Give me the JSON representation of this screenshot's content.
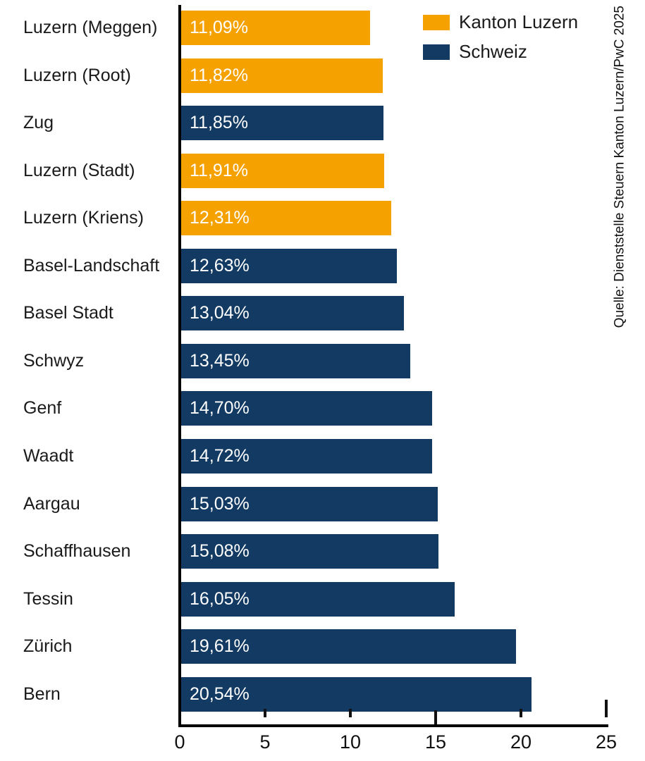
{
  "chart_data": {
    "type": "bar",
    "orientation": "horizontal",
    "title": "",
    "categories": [
      "Luzern (Meggen)",
      "Luzern (Root)",
      "Zug",
      "Luzern (Stadt)",
      "Luzern (Kriens)",
      "Basel-Landschaft",
      "Basel Stadt",
      "Schwyz",
      "Genf",
      "Waadt",
      "Aargau",
      "Schaffhausen",
      "Tessin",
      "Zürich",
      "Bern"
    ],
    "values": [
      11.09,
      11.82,
      11.85,
      11.91,
      12.31,
      12.63,
      13.04,
      13.45,
      14.7,
      14.72,
      15.03,
      15.08,
      16.05,
      19.61,
      20.54
    ],
    "value_labels": [
      "11,09%",
      "11,82%",
      "11,85%",
      "11,91%",
      "12,31%",
      "12,63%",
      "13,04%",
      "13,45%",
      "14,70%",
      "14,72%",
      "15,03%",
      "15,08%",
      "16,05%",
      "19,61%",
      "20,54%"
    ],
    "groups": [
      "Kanton Luzern",
      "Kanton Luzern",
      "Schweiz",
      "Kanton Luzern",
      "Kanton Luzern",
      "Schweiz",
      "Schweiz",
      "Schweiz",
      "Schweiz",
      "Schweiz",
      "Schweiz",
      "Schweiz",
      "Schweiz",
      "Schweiz",
      "Schweiz"
    ],
    "series": [
      {
        "name": "Kanton Luzern",
        "color": "#F5A100"
      },
      {
        "name": "Schweiz",
        "color": "#123A63"
      }
    ],
    "x_ticks": [
      0,
      5,
      10,
      15,
      20,
      25
    ],
    "x_tick_labels": [
      "0",
      "5",
      "10",
      "15",
      "20",
      "25"
    ],
    "xlim": [
      0,
      25
    ],
    "xlabel": "",
    "ylabel": "",
    "grid": false,
    "legend_position": "top-right"
  },
  "source": {
    "text": "Quelle: Dienststelle Steuern Kanton Luzern/PwC 2025"
  },
  "colors": {
    "axis": "#000000",
    "category_text": "#1a1a1a",
    "value_text": "#ffffff",
    "background": "#ffffff"
  }
}
